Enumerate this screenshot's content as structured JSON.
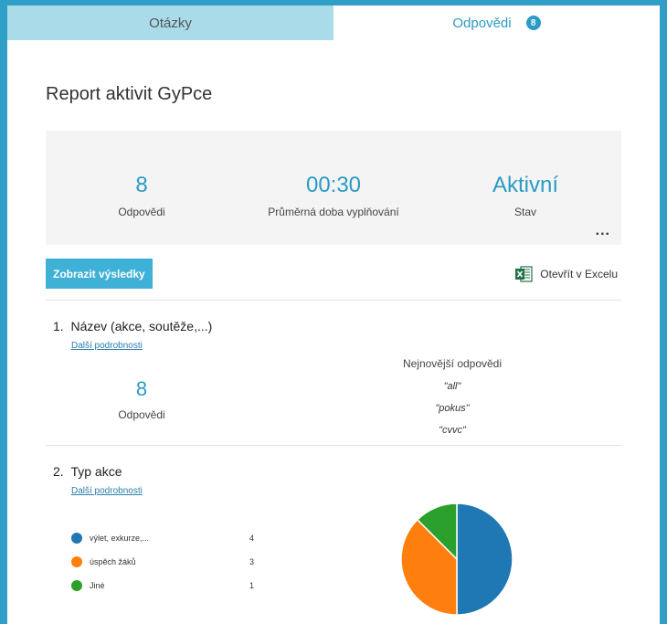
{
  "tabs": {
    "questions": "Otázky",
    "responses": "Odpovědi",
    "responses_badge": "8"
  },
  "page_title": "Report aktivit GyPce",
  "summary": {
    "responses": {
      "value": "8",
      "label": "Odpovědi"
    },
    "avg_time": {
      "value": "00:30",
      "label": "Průměrná doba vyplňování"
    },
    "status": {
      "value": "Aktivní",
      "label": "Stav"
    },
    "more": "..."
  },
  "actions": {
    "show_results": "Zobrazit výsledky",
    "open_excel": "Otevřít v Excelu"
  },
  "questions": [
    {
      "number": "1.",
      "title": "Název (akce, soutěže,...)",
      "details_link": "Další podrobnosti",
      "count": "8",
      "count_label": "Odpovědi",
      "latest_title": "Nejnovější odpovědi",
      "latest": [
        "\"all\"",
        "\"pokus\"",
        "\"cvvc\""
      ]
    },
    {
      "number": "2.",
      "title": "Typ akce",
      "details_link": "Další podrobnosti"
    }
  ],
  "chart_data": {
    "type": "pie",
    "categories": [
      "výlet, exkurze,...",
      "úspěch žáků",
      "Jiné"
    ],
    "values": [
      4,
      3,
      1
    ],
    "colors": [
      "#1f77b4",
      "#ff7f0e",
      "#2ca02c"
    ],
    "legend_placement": "left"
  }
}
